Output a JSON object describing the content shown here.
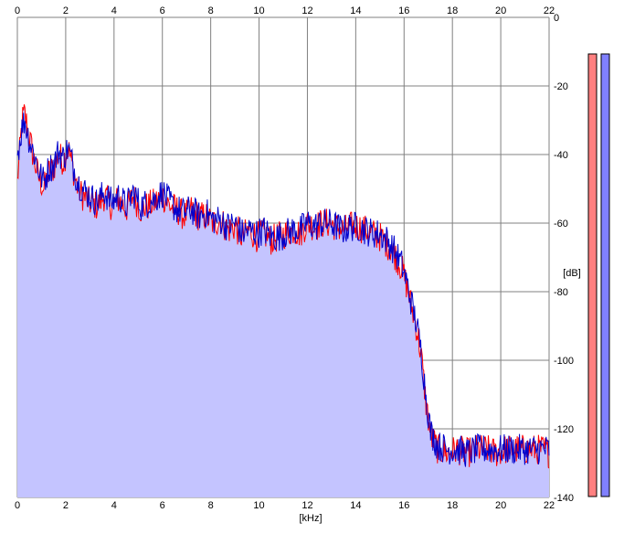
{
  "chart_data": {
    "type": "line",
    "title": "",
    "xlabel": "[kHz]",
    "ylabel": "[dB]",
    "xlim": [
      0,
      22
    ],
    "ylim": [
      -140,
      0
    ],
    "x_ticks": [
      "0",
      "2",
      "4",
      "6",
      "8",
      "10",
      "12",
      "14",
      "16",
      "18",
      "20",
      "22"
    ],
    "y_ticks": [
      "0",
      "-20",
      "-40",
      "-60",
      "-80",
      "-100",
      "-120",
      "-140"
    ],
    "grid": true,
    "colors": {
      "left": "#ff0000",
      "right": "#0000cc",
      "fill": "#c4c4ff",
      "grid": "#808080"
    },
    "series": [
      {
        "color": "#ff0000",
        "x": [
          0,
          0.2,
          0.3,
          0.5,
          0.7,
          0.9,
          1.1,
          1.3,
          1.5,
          1.7,
          1.9,
          2.1,
          2.3,
          2.5,
          2.7,
          3.0,
          3.3,
          3.6,
          3.9,
          4.2,
          4.5,
          4.8,
          5.1,
          5.4,
          5.7,
          6.0,
          6.3,
          6.6,
          6.9,
          7.2,
          7.5,
          7.8,
          8.1,
          8.4,
          8.7,
          9.0,
          9.3,
          9.6,
          9.9,
          10.2,
          10.5,
          10.8,
          11.1,
          11.4,
          11.7,
          12.0,
          12.3,
          12.6,
          12.9,
          13.2,
          13.5,
          13.8,
          14.1,
          14.4,
          14.7,
          15.0,
          15.3,
          15.6,
          15.9,
          16.1,
          16.3,
          16.5,
          16.7,
          16.9,
          17.1,
          17.4,
          17.8,
          18.2,
          18.6,
          19.0,
          19.4,
          19.8,
          20.2,
          20.6,
          21.0,
          21.4,
          21.8,
          22.0
        ],
        "y": [
          -48,
          -30,
          -28,
          -35,
          -42,
          -47,
          -50,
          -45,
          -44,
          -40,
          -42,
          -38,
          -44,
          -50,
          -52,
          -54,
          -55,
          -52,
          -55,
          -53,
          -56,
          -52,
          -56,
          -55,
          -54,
          -52,
          -55,
          -56,
          -58,
          -56,
          -58,
          -58,
          -60,
          -59,
          -62,
          -61,
          -64,
          -62,
          -64,
          -63,
          -65,
          -64,
          -63,
          -62,
          -63,
          -60,
          -61,
          -60,
          -60,
          -61,
          -62,
          -61,
          -61,
          -62,
          -63,
          -64,
          -66,
          -69,
          -73,
          -78,
          -84,
          -90,
          -98,
          -112,
          -122,
          -126,
          -127,
          -126,
          -127,
          -126,
          -126,
          -127,
          -126,
          -126,
          -126,
          -126,
          -126,
          -127
        ]
      },
      {
        "color": "#0000cc",
        "x": [
          0,
          0.2,
          0.3,
          0.5,
          0.7,
          0.9,
          1.1,
          1.3,
          1.5,
          1.7,
          1.9,
          2.1,
          2.3,
          2.5,
          2.7,
          3.0,
          3.3,
          3.6,
          3.9,
          4.2,
          4.5,
          4.8,
          5.1,
          5.4,
          5.7,
          6.0,
          6.3,
          6.6,
          6.9,
          7.2,
          7.5,
          7.8,
          8.1,
          8.4,
          8.7,
          9.0,
          9.3,
          9.6,
          9.9,
          10.2,
          10.5,
          10.8,
          11.1,
          11.4,
          11.7,
          12.0,
          12.3,
          12.6,
          12.9,
          13.2,
          13.5,
          13.8,
          14.1,
          14.4,
          14.7,
          15.0,
          15.3,
          15.6,
          15.9,
          16.1,
          16.3,
          16.5,
          16.7,
          16.9,
          17.1,
          17.4,
          17.8,
          18.2,
          18.6,
          19.0,
          19.4,
          19.8,
          20.2,
          20.6,
          21.0,
          21.4,
          21.8,
          22.0
        ],
        "y": [
          -40,
          -32,
          -30,
          -36,
          -40,
          -45,
          -48,
          -44,
          -43,
          -39,
          -41,
          -38,
          -43,
          -48,
          -50,
          -52,
          -54,
          -51,
          -54,
          -52,
          -55,
          -51,
          -55,
          -54,
          -53,
          -51,
          -54,
          -56,
          -57,
          -56,
          -58,
          -57,
          -59,
          -59,
          -61,
          -60,
          -63,
          -62,
          -63,
          -62,
          -64,
          -64,
          -63,
          -62,
          -62,
          -60,
          -61,
          -60,
          -60,
          -61,
          -62,
          -61,
          -61,
          -62,
          -63,
          -63,
          -65,
          -68,
          -72,
          -77,
          -83,
          -89,
          -97,
          -110,
          -121,
          -125,
          -126,
          -126,
          -127,
          -126,
          -126,
          -126,
          -126,
          -126,
          -126,
          -126,
          -126,
          -126
        ]
      }
    ]
  }
}
